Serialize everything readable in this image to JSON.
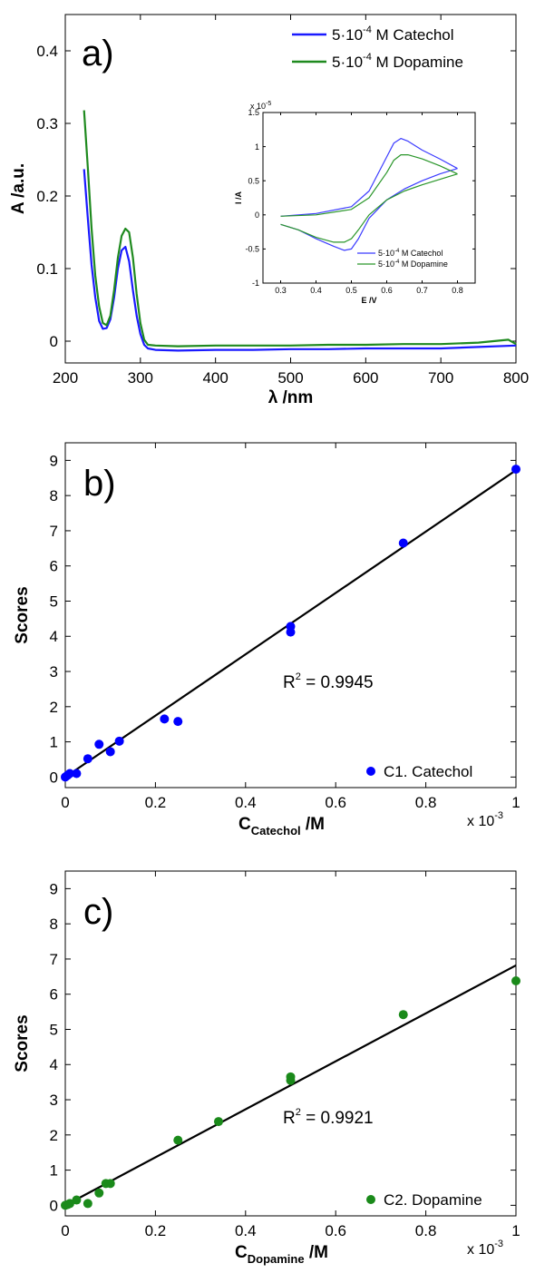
{
  "chart_data": [
    {
      "panel_label": "a)",
      "type": "line",
      "xlabel": "λ /nm",
      "ylabel": "A /a.u.",
      "xlim": [
        200,
        800
      ],
      "ylim": [
        -0.03,
        0.45
      ],
      "xticks": [
        200,
        300,
        400,
        500,
        600,
        700,
        800
      ],
      "yticks": [
        0,
        0.1,
        0.2,
        0.3,
        0.4
      ],
      "legend_position": "top-right",
      "series": [
        {
          "name": "5·10⁻⁴ M Catechol",
          "name_base": "5·10",
          "name_exp": "-4",
          "name_rest": " M Catechol",
          "color": "#1a1aff",
          "x": [
            225,
            230,
            235,
            240,
            245,
            250,
            255,
            260,
            265,
            270,
            275,
            280,
            285,
            290,
            295,
            300,
            305,
            310,
            320,
            350,
            400,
            450,
            500,
            550,
            600,
            650,
            700,
            750,
            800
          ],
          "y": [
            0.237,
            0.17,
            0.105,
            0.06,
            0.028,
            0.017,
            0.018,
            0.03,
            0.06,
            0.1,
            0.125,
            0.13,
            0.11,
            0.07,
            0.035,
            0.01,
            -0.005,
            -0.01,
            -0.012,
            -0.013,
            -0.012,
            -0.012,
            -0.011,
            -0.011,
            -0.01,
            -0.01,
            -0.01,
            -0.008,
            -0.006
          ]
        },
        {
          "name": "5·10⁻⁴ M Dopamine",
          "name_base": "5·10",
          "name_exp": "-4",
          "name_rest": " M Dopamine",
          "color": "#1f8a1f",
          "x": [
            225,
            230,
            235,
            240,
            245,
            250,
            255,
            260,
            265,
            270,
            275,
            280,
            285,
            290,
            295,
            300,
            305,
            310,
            320,
            350,
            400,
            450,
            500,
            550,
            600,
            650,
            700,
            750,
            770,
            790,
            800
          ],
          "y": [
            0.318,
            0.24,
            0.155,
            0.09,
            0.048,
            0.025,
            0.022,
            0.035,
            0.07,
            0.115,
            0.145,
            0.155,
            0.15,
            0.115,
            0.065,
            0.025,
            0.002,
            -0.005,
            -0.006,
            -0.007,
            -0.006,
            -0.006,
            -0.006,
            -0.005,
            -0.005,
            -0.004,
            -0.004,
            -0.002,
            0.0,
            0.002,
            -0.004
          ]
        }
      ],
      "inset": {
        "type": "line",
        "xlabel": "E /V",
        "ylabel": "I /A",
        "xlim": [
          0.25,
          0.85
        ],
        "ylim": [
          -1.0,
          1.5
        ],
        "xticks": [
          0.3,
          0.4,
          0.5,
          0.6,
          0.7,
          0.8
        ],
        "yticks": [
          -1,
          -0.5,
          0,
          0.5,
          1,
          1.5
        ],
        "y_multiplier": "x 10",
        "y_multiplier_exp": "-5",
        "legend_position": "bottom-right",
        "series": [
          {
            "name": "5·10⁻⁴ M Catechol",
            "name_base": "5·10",
            "name_exp": "-4",
            "name_rest": " M Catechol",
            "color": "#3b3bff",
            "forward_E": [
              0.3,
              0.4,
              0.5,
              0.55,
              0.6,
              0.62,
              0.64,
              0.66,
              0.7,
              0.75,
              0.8
            ],
            "forward_I": [
              -0.02,
              0.02,
              0.12,
              0.35,
              0.85,
              1.05,
              1.12,
              1.08,
              0.95,
              0.82,
              0.68
            ],
            "reverse_E": [
              0.8,
              0.75,
              0.7,
              0.65,
              0.6,
              0.55,
              0.52,
              0.5,
              0.48,
              0.45,
              0.4,
              0.35,
              0.3
            ],
            "reverse_I": [
              0.68,
              0.6,
              0.5,
              0.38,
              0.22,
              -0.05,
              -0.35,
              -0.5,
              -0.52,
              -0.46,
              -0.35,
              -0.22,
              -0.14
            ]
          },
          {
            "name": "5·10⁻⁴ M Dopamine",
            "name_base": "5·10",
            "name_exp": "-4",
            "name_rest": " M Dopamine",
            "color": "#2a962a",
            "forward_E": [
              0.3,
              0.4,
              0.5,
              0.55,
              0.6,
              0.62,
              0.64,
              0.66,
              0.7,
              0.75,
              0.8
            ],
            "forward_I": [
              -0.02,
              0.0,
              0.08,
              0.25,
              0.62,
              0.8,
              0.88,
              0.88,
              0.82,
              0.72,
              0.6
            ],
            "reverse_E": [
              0.8,
              0.75,
              0.7,
              0.65,
              0.6,
              0.55,
              0.52,
              0.5,
              0.48,
              0.45,
              0.4,
              0.35,
              0.3
            ],
            "reverse_I": [
              0.6,
              0.52,
              0.44,
              0.35,
              0.22,
              0.0,
              -0.22,
              -0.35,
              -0.4,
              -0.4,
              -0.33,
              -0.22,
              -0.14
            ]
          }
        ]
      }
    },
    {
      "panel_label": "b)",
      "type": "scatter",
      "xlabel_base": "C",
      "xlabel_sub": "Catechol",
      "xlabel_rest": " /M",
      "ylabel": "Scores",
      "x_multiplier": "x 10",
      "x_multiplier_exp": "-3",
      "xlim": [
        0,
        1
      ],
      "ylim": [
        -0.3,
        9.5
      ],
      "xticks": [
        0,
        0.2,
        0.4,
        0.6,
        0.8,
        1
      ],
      "yticks": [
        0,
        1,
        2,
        3,
        4,
        5,
        6,
        7,
        8,
        9
      ],
      "annotation": "R² = 0.9945",
      "annotation_base": "R",
      "annotation_exp": "2",
      "annotation_rest": " = 0.9945",
      "legend_position": "bottom-right",
      "series": [
        {
          "name": "C1. Catechol",
          "color": "#0000ff",
          "x": [
            0,
            0.005,
            0.01,
            0.025,
            0.05,
            0.075,
            0.1,
            0.12,
            0.22,
            0.25,
            0.5,
            0.5,
            0.75,
            1.0
          ],
          "y": [
            0,
            0.05,
            0.1,
            0.1,
            0.52,
            0.93,
            0.72,
            1.02,
            1.65,
            1.58,
            4.28,
            4.12,
            6.65,
            8.75
          ]
        }
      ],
      "fit_line": {
        "x": [
          0,
          1.0
        ],
        "y": [
          0.0,
          8.72
        ],
        "color": "#000000"
      }
    },
    {
      "panel_label": "c)",
      "type": "scatter",
      "xlabel_base": "C",
      "xlabel_sub": "Dopamine",
      "xlabel_rest": " /M",
      "ylabel": "Scores",
      "x_multiplier": "x 10",
      "x_multiplier_exp": "-3",
      "xlim": [
        0,
        1
      ],
      "ylim": [
        -0.3,
        9.5
      ],
      "xticks": [
        0,
        0.2,
        0.4,
        0.6,
        0.8,
        1
      ],
      "yticks": [
        0,
        1,
        2,
        3,
        4,
        5,
        6,
        7,
        8,
        9
      ],
      "annotation": "R² = 0.9921",
      "annotation_base": "R",
      "annotation_exp": "2",
      "annotation_rest": " = 0.9921",
      "legend_position": "bottom-right",
      "series": [
        {
          "name": "C2. Dopamine",
          "color": "#1a8a1a",
          "x": [
            0,
            0.005,
            0.01,
            0.025,
            0.05,
            0.075,
            0.09,
            0.1,
            0.25,
            0.34,
            0.5,
            0.5,
            0.75,
            1.0
          ],
          "y": [
            0,
            0.02,
            0.05,
            0.15,
            0.05,
            0.35,
            0.62,
            0.62,
            1.85,
            2.38,
            3.65,
            3.55,
            5.42,
            6.38
          ]
        }
      ],
      "fit_line": {
        "x": [
          0,
          1.0
        ],
        "y": [
          0.0,
          6.82
        ],
        "color": "#000000"
      }
    }
  ]
}
